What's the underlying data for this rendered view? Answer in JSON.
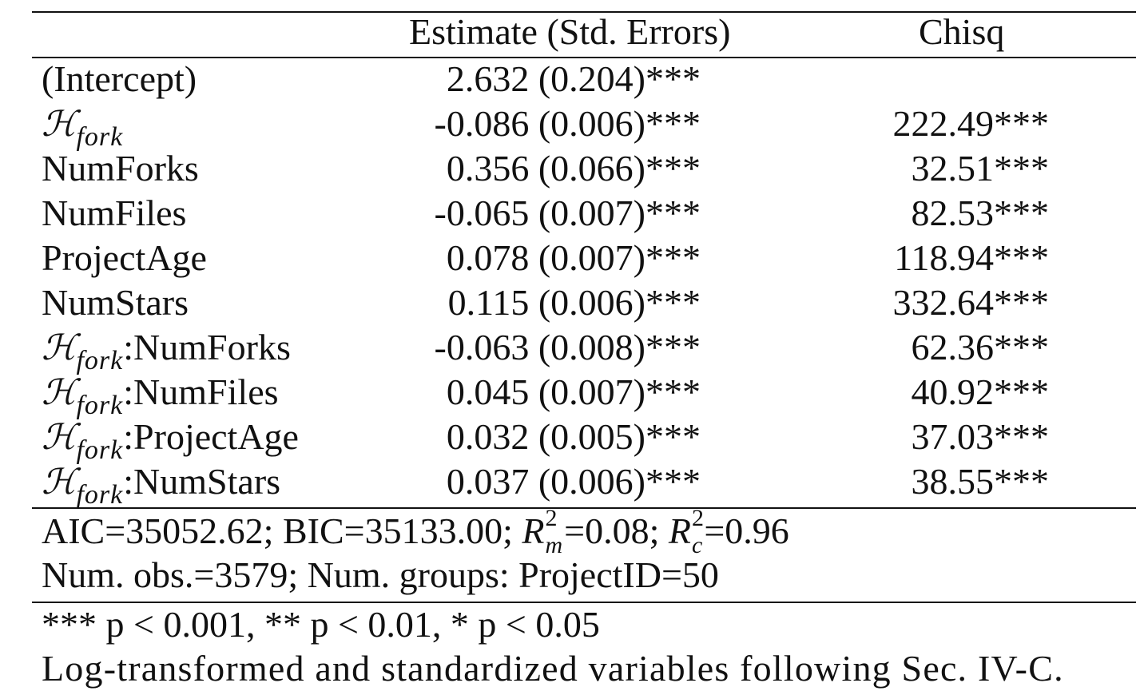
{
  "table": {
    "headers": {
      "label": "",
      "estimate": "Estimate (Std. Errors)",
      "chisq": "Chisq"
    },
    "rows": [
      {
        "label": "(Intercept)",
        "math_prefix": "",
        "math_sub": "",
        "suffix": "",
        "estimate": "2.632 (0.204)***",
        "chisq": ""
      },
      {
        "label": "",
        "math_prefix": "H",
        "math_sub": "fork",
        "suffix": "",
        "estimate": "-0.086 (0.006)***",
        "chisq": "222.49***"
      },
      {
        "label": "NumForks",
        "math_prefix": "",
        "math_sub": "",
        "suffix": "",
        "estimate": "0.356 (0.066)***",
        "chisq": "32.51***"
      },
      {
        "label": "NumFiles",
        "math_prefix": "",
        "math_sub": "",
        "suffix": "",
        "estimate": "-0.065 (0.007)***",
        "chisq": "82.53***"
      },
      {
        "label": "ProjectAge",
        "math_prefix": "",
        "math_sub": "",
        "suffix": "",
        "estimate": "0.078 (0.007)***",
        "chisq": "118.94***"
      },
      {
        "label": "NumStars",
        "math_prefix": "",
        "math_sub": "",
        "suffix": "",
        "estimate": "0.115 (0.006)***",
        "chisq": "332.64***"
      },
      {
        "label": "",
        "math_prefix": "H",
        "math_sub": "fork",
        "suffix": ":NumForks",
        "estimate": "-0.063 (0.008)***",
        "chisq": "62.36***"
      },
      {
        "label": "",
        "math_prefix": "H",
        "math_sub": "fork",
        "suffix": ":NumFiles",
        "estimate": "0.045 (0.007)***",
        "chisq": "40.92***"
      },
      {
        "label": "",
        "math_prefix": "H",
        "math_sub": "fork",
        "suffix": ":ProjectAge",
        "estimate": "0.032 (0.005)***",
        "chisq": "37.03***"
      },
      {
        "label": "",
        "math_prefix": "H",
        "math_sub": "fork",
        "suffix": ":NumStars",
        "estimate": "0.037 (0.006)***",
        "chisq": "38.55***"
      }
    ],
    "fit_stats": {
      "aic": "AIC=35052.62;",
      "bic": "BIC=35133.00;",
      "r2m_symbol": "R",
      "r2m_sup": "2",
      "r2m_sub": "m",
      "r2m_value": "=0.08;",
      "r2c_symbol": "R",
      "r2c_sup": "2",
      "r2c_sub": "c",
      "r2c_value": "=0.96",
      "obs_line": "Num. obs.=3579; Num. groups: ProjectID=50"
    },
    "notes": {
      "significance": "*** p < 0.001, ** p < 0.01, * p < 0.05",
      "transform": "Log-transformed and standardized variables following Sec. IV-C."
    }
  }
}
